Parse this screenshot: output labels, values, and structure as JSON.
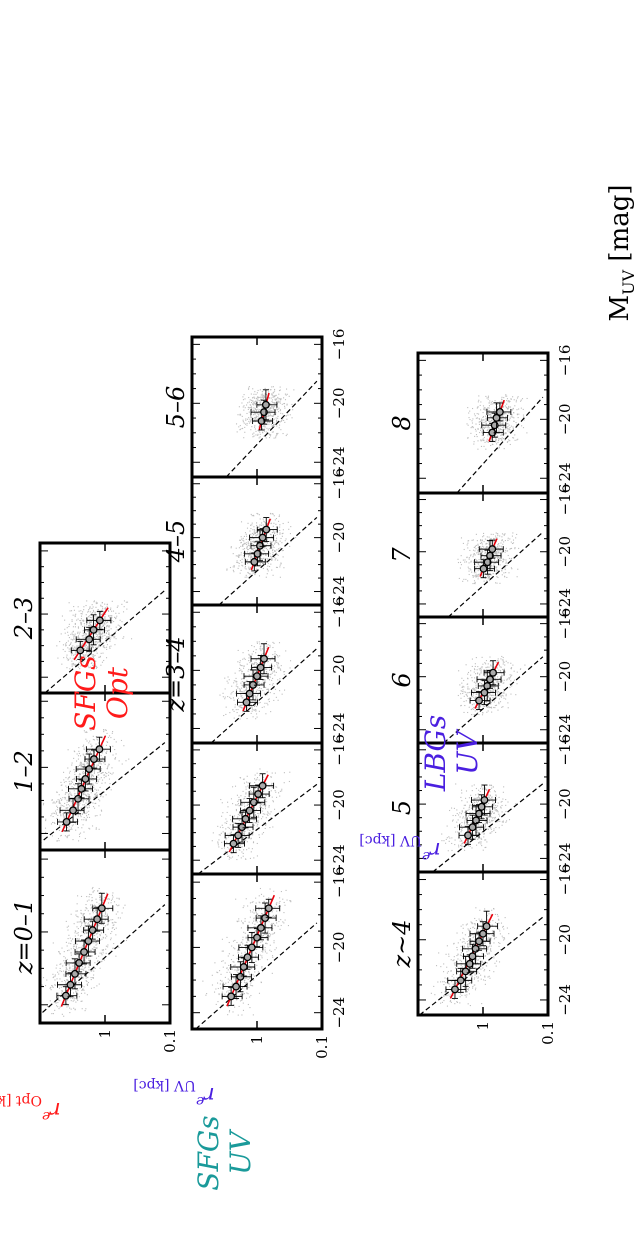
{
  "figure": {
    "rotated": true,
    "x_axis_title": "M",
    "x_axis_title_sub": "UV",
    "x_axis_title_unit": " [mag]"
  },
  "groups": [
    {
      "id": "sfg-opt",
      "label_line1": "SFGs",
      "label_line2": "Opt",
      "label_color": "#ff1a1a",
      "ylabel_main": "r",
      "ylabel_sup": "e",
      "ylabel_sub": "Opt",
      "ylabel_unit": " [kpc]",
      "ylabel_color": "#ff1a1a"
    },
    {
      "id": "sfg-uv",
      "label_line1": "SFGs",
      "label_line2": "UV",
      "label_color": "#1a9a9a",
      "ylabel_main": "r",
      "ylabel_sup": "e",
      "ylabel_sub": "UV",
      "ylabel_unit": " [kpc]",
      "ylabel_color": "#4a1fe0"
    },
    {
      "id": "lbg-uv",
      "label_line1": "LBGs",
      "label_line2": "UV",
      "label_color": "#4a1fe0",
      "ylabel_main": "r",
      "ylabel_sup": "e",
      "ylabel_sub": "UV",
      "ylabel_unit": " [kpc]",
      "ylabel_color": "#4a1fe0"
    }
  ],
  "chart_data": {
    "type": "scatter",
    "title": "",
    "xlabel": "M_UV [mag]",
    "ylabel": "r_e [kpc]",
    "xlim": [
      -25,
      -15.5
    ],
    "ylim": [
      0.1,
      10
    ],
    "yscale": "log",
    "x_ticks": [
      "-24",
      "-20",
      "-16"
    ],
    "y_ticks": [
      "1",
      "0.1"
    ],
    "colors": {
      "points": "#888888",
      "fit_line": "#e8000b",
      "dashed_line": "#000000",
      "error_bars": "#000000",
      "marker_face": "#aaaaaa"
    },
    "panels": [
      {
        "group": "sfg-opt",
        "label": "z=0–1",
        "points": [
          [
            -23.5,
            4.0
          ],
          [
            -22.9,
            3.4
          ],
          [
            -22.3,
            2.9
          ],
          [
            -21.7,
            2.5
          ],
          [
            -21.1,
            2.1
          ],
          [
            -20.5,
            1.8
          ],
          [
            -19.9,
            1.55
          ],
          [
            -19.3,
            1.32
          ],
          [
            -18.7,
            1.12
          ]
        ]
      },
      {
        "group": "sfg-opt",
        "label": "1–2",
        "points": [
          [
            -23.3,
            3.9
          ],
          [
            -22.6,
            3.1
          ],
          [
            -21.9,
            2.6
          ],
          [
            -21.3,
            2.3
          ],
          [
            -20.7,
            2.0
          ],
          [
            -20.1,
            1.75
          ],
          [
            -19.5,
            1.48
          ],
          [
            -18.9,
            1.22
          ]
        ]
      },
      {
        "group": "sfg-opt",
        "label": "2–3",
        "points": [
          [
            -22.3,
            2.4
          ],
          [
            -21.6,
            1.75
          ],
          [
            -21.0,
            1.5
          ],
          [
            -20.4,
            1.2
          ]
        ]
      },
      {
        "group": "sfg-uv",
        "label": "",
        "points": [
          [
            -23.0,
            2.5
          ],
          [
            -22.4,
            2.1
          ],
          [
            -21.8,
            1.8
          ],
          [
            -21.2,
            1.6
          ],
          [
            -20.6,
            1.4
          ],
          [
            -20.0,
            1.2
          ],
          [
            -19.4,
            1.0
          ],
          [
            -18.8,
            0.87
          ],
          [
            -18.2,
            0.75
          ],
          [
            -17.6,
            0.66
          ]
        ]
      },
      {
        "group": "sfg-uv",
        "label": "",
        "points": [
          [
            -22.8,
            2.3
          ],
          [
            -22.2,
            1.95
          ],
          [
            -21.6,
            1.7
          ],
          [
            -21.0,
            1.5
          ],
          [
            -20.4,
            1.3
          ],
          [
            -19.8,
            1.12
          ],
          [
            -19.2,
            0.96
          ],
          [
            -18.6,
            0.82
          ]
        ]
      },
      {
        "group": "sfg-uv",
        "label": "z=3–4",
        "points": [
          [
            -22.2,
            1.45
          ],
          [
            -21.6,
            1.3
          ],
          [
            -21.0,
            1.15
          ],
          [
            -20.4,
            1.0
          ],
          [
            -19.8,
            0.88
          ],
          [
            -19.2,
            0.78
          ]
        ]
      },
      {
        "group": "sfg-uv",
        "label": "4–5",
        "points": [
          [
            -21.8,
            1.1
          ],
          [
            -21.2,
            0.98
          ],
          [
            -20.6,
            0.9
          ],
          [
            -20.0,
            0.82
          ],
          [
            -19.4,
            0.72
          ]
        ]
      },
      {
        "group": "sfg-uv",
        "label": "5–6",
        "points": [
          [
            -21.2,
            0.85
          ],
          [
            -20.6,
            0.78
          ],
          [
            -20.1,
            0.73
          ]
        ]
      },
      {
        "group": "lbg-uv",
        "label": "z~4",
        "points": [
          [
            -23.3,
            2.7
          ],
          [
            -22.7,
            2.2
          ],
          [
            -22.1,
            1.85
          ],
          [
            -21.6,
            1.6
          ],
          [
            -21.1,
            1.45
          ],
          [
            -20.6,
            1.3
          ],
          [
            -20.1,
            1.15
          ],
          [
            -19.6,
            1.0
          ],
          [
            -19.1,
            0.88
          ]
        ]
      },
      {
        "group": "lbg-uv",
        "label": "5",
        "points": [
          [
            -22.3,
            1.7
          ],
          [
            -21.7,
            1.45
          ],
          [
            -21.2,
            1.28
          ],
          [
            -20.7,
            1.15
          ],
          [
            -20.2,
            1.05
          ],
          [
            -19.7,
            0.95
          ]
        ]
      },
      {
        "group": "lbg-uv",
        "label": "6",
        "points": [
          [
            -21.8,
            1.15
          ],
          [
            -21.2,
            0.95
          ],
          [
            -20.7,
            0.86
          ],
          [
            -20.2,
            0.78
          ],
          [
            -19.7,
            0.7
          ]
        ]
      },
      {
        "group": "lbg-uv",
        "label": "7",
        "points": [
          [
            -21.3,
            0.98
          ],
          [
            -20.8,
            0.85
          ],
          [
            -20.3,
            0.78
          ],
          [
            -19.8,
            0.72
          ]
        ]
      },
      {
        "group": "lbg-uv",
        "label": "8",
        "points": [
          [
            -20.9,
            0.72
          ],
          [
            -20.4,
            0.66
          ],
          [
            -19.9,
            0.62
          ],
          [
            -19.5,
            0.55
          ]
        ]
      }
    ]
  }
}
